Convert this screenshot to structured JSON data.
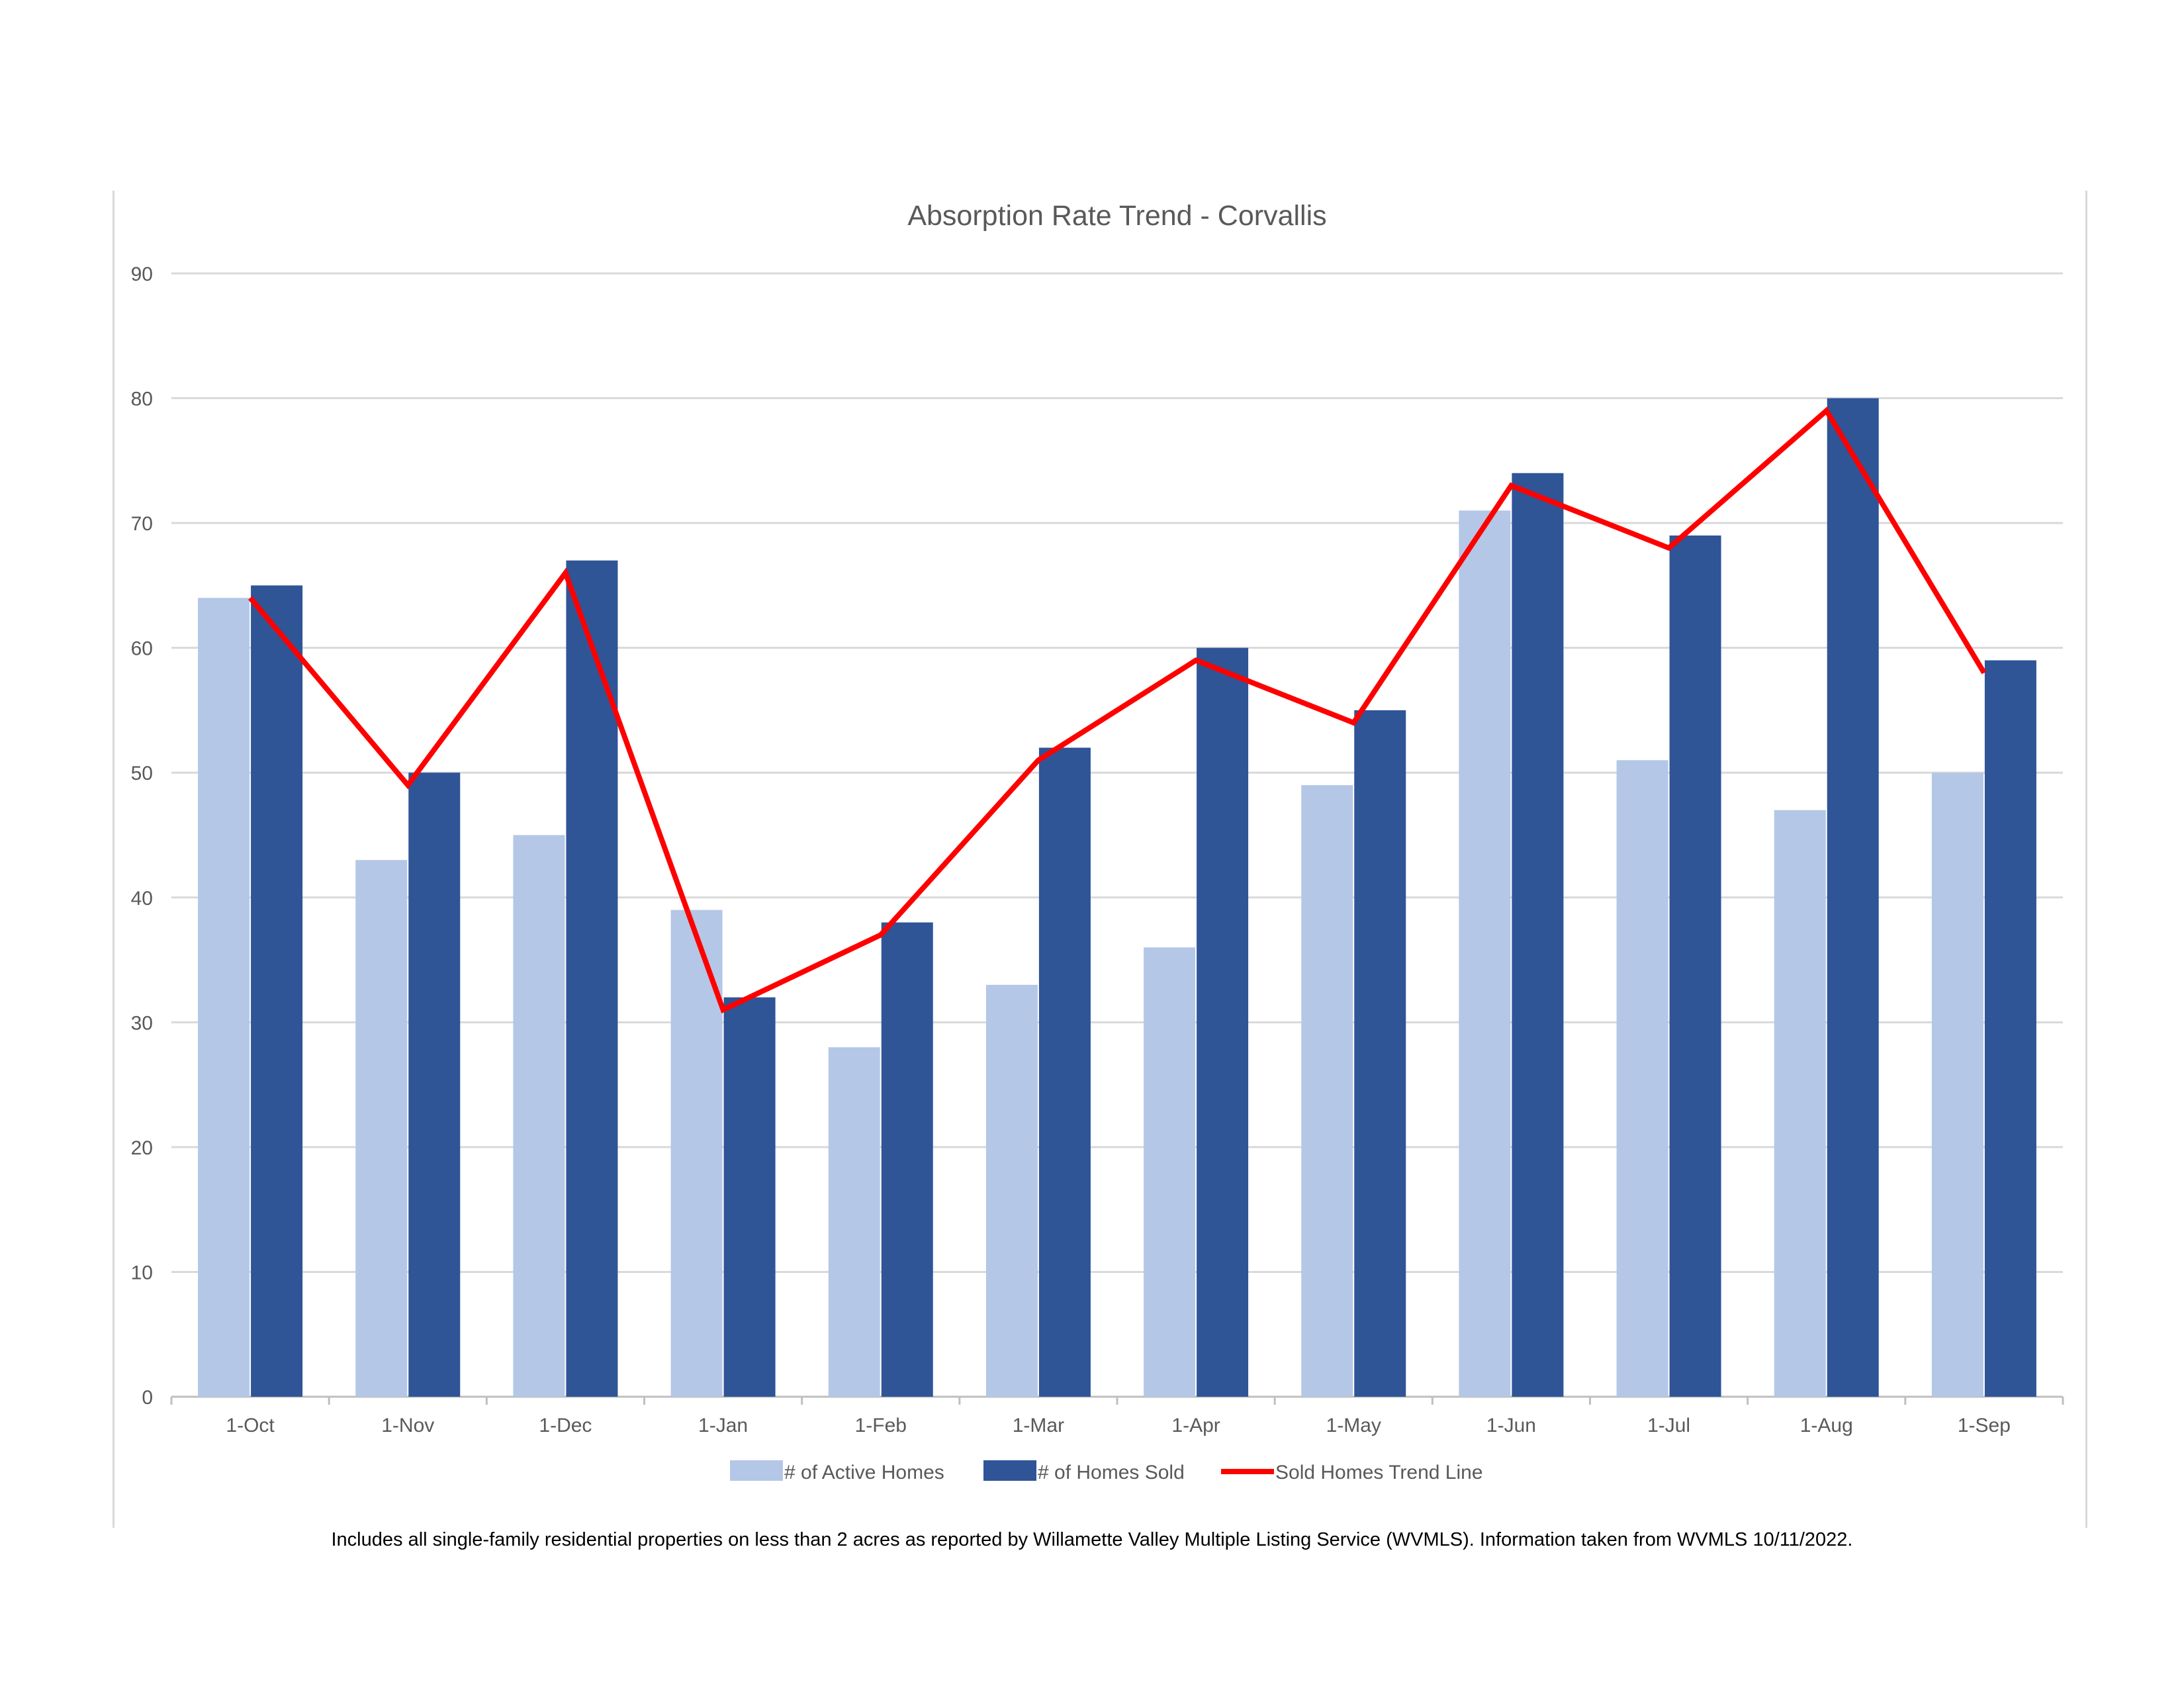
{
  "chart_data": {
    "type": "bar",
    "title": "Absorption Rate Trend - Corvallis",
    "categories": [
      "1-Oct",
      "1-Nov",
      "1-Dec",
      "1-Jan",
      "1-Feb",
      "1-Mar",
      "1-Apr",
      "1-May",
      "1-Jun",
      "1-Jul",
      "1-Aug",
      "1-Sep"
    ],
    "series": [
      {
        "name": "# of Active Homes",
        "type": "bar",
        "color": "#b4c7e7",
        "values": [
          64,
          43,
          45,
          39,
          28,
          33,
          36,
          49,
          71,
          51,
          47,
          50
        ]
      },
      {
        "name": "# of Homes Sold",
        "type": "bar",
        "color": "#2f5597",
        "values": [
          65,
          50,
          67,
          32,
          38,
          52,
          60,
          55,
          74,
          69,
          80,
          59
        ]
      },
      {
        "name": "Sold Homes Trend Line",
        "type": "line",
        "color": "#ff0000",
        "values": [
          64,
          49,
          66,
          31,
          37,
          51,
          59,
          54,
          73,
          68,
          79,
          58
        ]
      }
    ],
    "ylim": [
      0,
      90
    ],
    "yticks": [
      0,
      10,
      20,
      30,
      40,
      50,
      60,
      70,
      80,
      90
    ],
    "grid": true,
    "legend": "bottom"
  },
  "footnote": "Includes all single-family residential properties on less than 2 acres as reported by Willamette Valley Multiple Listing Service (WVMLS). Information taken from WVMLS 10/11/2022."
}
